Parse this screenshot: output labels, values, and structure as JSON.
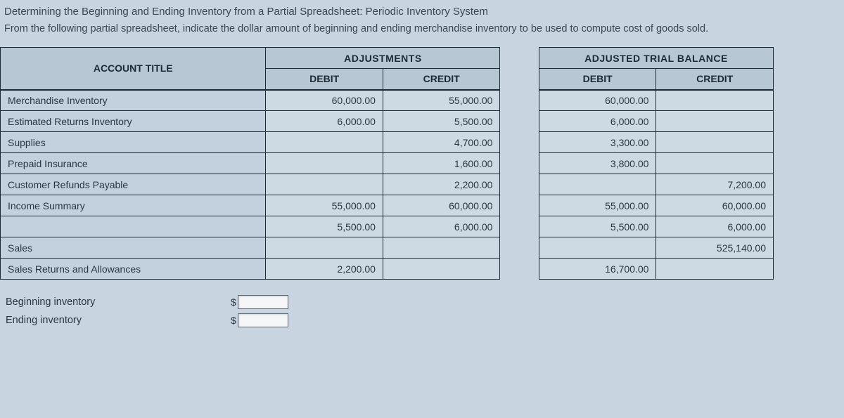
{
  "title": "Determining the Beginning and Ending Inventory from a Partial Spreadsheet: Periodic Inventory System",
  "instructions": "From the following partial spreadsheet, indicate the dollar amount of beginning and ending merchandise inventory to be used to compute cost of goods sold.",
  "headers": {
    "account_title": "ACCOUNT TITLE",
    "adjustments": "ADJUSTMENTS",
    "adjusted_trial_balance": "ADJUSTED TRIAL BALANCE",
    "debit": "DEBIT",
    "credit": "CREDIT"
  },
  "rows": [
    {
      "label": "Merchandise Inventory",
      "adj_debit": "60,000.00",
      "adj_credit": "55,000.00",
      "atb_debit": "60,000.00",
      "atb_credit": ""
    },
    {
      "label": "Estimated Returns Inventory",
      "adj_debit": "6,000.00",
      "adj_credit": "5,500.00",
      "atb_debit": "6,000.00",
      "atb_credit": ""
    },
    {
      "label": "Supplies",
      "adj_debit": "",
      "adj_credit": "4,700.00",
      "atb_debit": "3,300.00",
      "atb_credit": ""
    },
    {
      "label": "Prepaid Insurance",
      "adj_debit": "",
      "adj_credit": "1,600.00",
      "atb_debit": "3,800.00",
      "atb_credit": ""
    },
    {
      "label": "Customer Refunds Payable",
      "adj_debit": "",
      "adj_credit": "2,200.00",
      "atb_debit": "",
      "atb_credit": "7,200.00"
    },
    {
      "label": "Income Summary",
      "adj_debit": "55,000.00",
      "adj_credit": "60,000.00",
      "atb_debit": "55,000.00",
      "atb_credit": "60,000.00"
    },
    {
      "label": "",
      "adj_debit": "5,500.00",
      "adj_credit": "6,000.00",
      "atb_debit": "5,500.00",
      "atb_credit": "6,000.00"
    },
    {
      "label": "Sales",
      "adj_debit": "",
      "adj_credit": "",
      "atb_debit": "",
      "atb_credit": "525,140.00"
    },
    {
      "label": "Sales Returns and Allowances",
      "adj_debit": "2,200.00",
      "adj_credit": "",
      "atb_debit": "16,700.00",
      "atb_credit": ""
    }
  ],
  "answers": {
    "beginning_label": "Beginning inventory",
    "ending_label": "Ending inventory",
    "beginning_value": "",
    "ending_value": ""
  },
  "colors": {
    "page_bg": "#c8d5e0",
    "header_bg": "#b7c7d4",
    "cell_bg": "#cdd9e3",
    "border": "#1e2a33",
    "text": "#2a3640"
  }
}
